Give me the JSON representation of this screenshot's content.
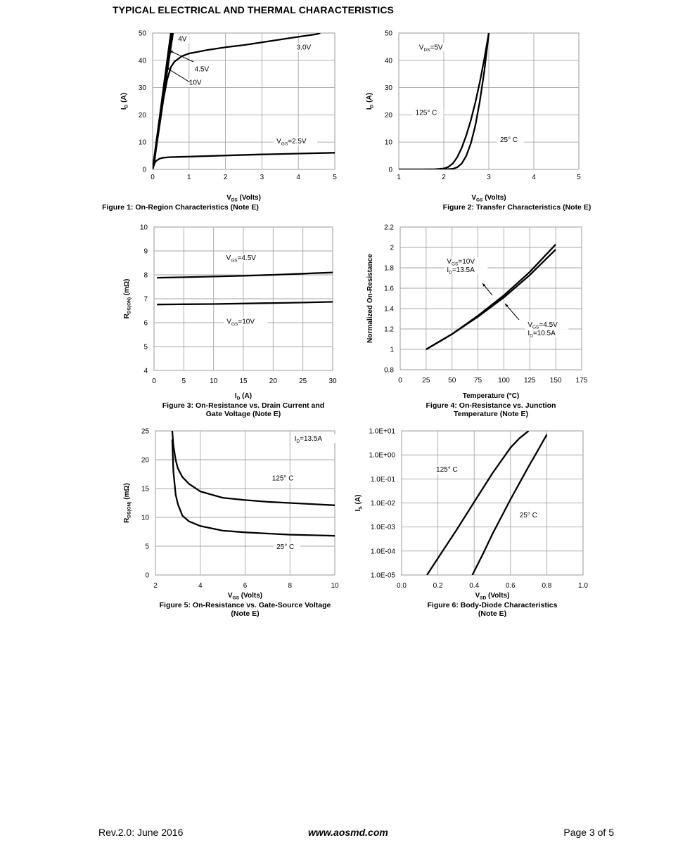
{
  "page": {
    "header": "TYPICAL ELECTRICAL AND THERMAL CHARACTERISTICS",
    "footer_left": "Rev.2.0: June 2016",
    "footer_center": "www.aosmd.com",
    "footer_right": "Page 3 of 5"
  },
  "chart_data": [
    {
      "type": "line",
      "caption": "Figure 1: On-Region Characteristics (Note E)",
      "xlabel": {
        "main": "V",
        "sub": "DS",
        "rest": " (Volts)"
      },
      "ylabel": {
        "main": "I",
        "sub": "D",
        "rest": " (A)"
      },
      "xlim": [
        0,
        5
      ],
      "ylim": [
        0,
        50
      ],
      "xticks": [
        "0",
        "1",
        "2",
        "3",
        "4",
        "5"
      ],
      "yticks": [
        "0",
        "10",
        "20",
        "30",
        "40",
        "50"
      ],
      "grid": true,
      "series": [
        {
          "name": "10V",
          "x": [
            0,
            0.05,
            0.1,
            0.2,
            0.3,
            0.4,
            0.5
          ],
          "y": [
            0,
            5,
            10,
            20,
            30,
            40,
            50
          ]
        },
        {
          "name": "4.5V",
          "x": [
            0,
            0.05,
            0.1,
            0.2,
            0.3,
            0.4,
            0.5,
            0.52
          ],
          "y": [
            0,
            4.8,
            9.6,
            19.2,
            28.8,
            38.4,
            48,
            50
          ]
        },
        {
          "name": "4V",
          "x": [
            0,
            0.05,
            0.1,
            0.2,
            0.3,
            0.4,
            0.5,
            0.56
          ],
          "y": [
            0,
            4.6,
            9.2,
            18.2,
            27.2,
            36,
            44.8,
            50
          ]
        },
        {
          "name": "3.0V",
          "x": [
            0,
            0.05,
            0.1,
            0.2,
            0.3,
            0.4,
            0.5,
            0.6,
            0.8,
            1.0,
            1.5,
            2.0,
            2.5,
            3.0,
            3.5,
            4.0,
            4.5,
            4.6
          ],
          "y": [
            0,
            3,
            8,
            17,
            26,
            33,
            37.5,
            39.5,
            41.5,
            42.5,
            43.8,
            44.8,
            45.6,
            46.6,
            47.6,
            48.6,
            49.6,
            50
          ]
        },
        {
          "name": "2.5V",
          "x": [
            0,
            0.05,
            0.1,
            0.2,
            0.3,
            0.5,
            1.0,
            2.0,
            3.0,
            4.0,
            5.0
          ],
          "y": [
            0,
            2.2,
            3.2,
            4.0,
            4.3,
            4.5,
            4.7,
            5.1,
            5.5,
            5.8,
            6.1
          ]
        }
      ],
      "annotations": [
        {
          "text": "4V",
          "x": 0.7,
          "y": 47
        },
        {
          "text": "4.5V",
          "x": 1.15,
          "y": 36
        },
        {
          "text": "10V",
          "x": 1.0,
          "y": 31
        },
        {
          "text": "3.0V",
          "x": 3.95,
          "y": 44
        },
        {
          "main": "V",
          "sub": "GS",
          "rest": "=2.5V",
          "x": 3.4,
          "y": 9.6
        }
      ]
    },
    {
      "type": "line",
      "caption": "Figure 2: Transfer Characteristics (Note E)",
      "xlabel": {
        "main": "V",
        "sub": "GS",
        "rest": " (Volts)"
      },
      "ylabel": {
        "main": "I",
        "sub": "D",
        "rest": " (A)"
      },
      "xlim": [
        1,
        5
      ],
      "ylim": [
        0,
        50
      ],
      "xticks": [
        "1",
        "2",
        "3",
        "4",
        "5"
      ],
      "yticks": [
        "0",
        "10",
        "20",
        "30",
        "40",
        "50"
      ],
      "grid": true,
      "series": [
        {
          "name": "125° C",
          "x": [
            1.0,
            1.5,
            1.8,
            2.0,
            2.1,
            2.2,
            2.3,
            2.4,
            2.5,
            2.6,
            2.7,
            2.8,
            2.9,
            3.0
          ],
          "y": [
            0,
            0,
            0.05,
            0.3,
            0.9,
            2.2,
            4.5,
            8,
            12.5,
            18,
            24.5,
            32,
            40.5,
            50
          ]
        },
        {
          "name": "25° C",
          "x": [
            1.0,
            1.5,
            2.0,
            2.2,
            2.3,
            2.4,
            2.5,
            2.6,
            2.7,
            2.8,
            2.9,
            3.0
          ],
          "y": [
            0,
            0,
            0,
            0.2,
            0.8,
            2.2,
            5,
            9.5,
            16,
            25,
            36,
            50
          ]
        }
      ],
      "annotations": [
        {
          "main": "V",
          "sub": "DS",
          "rest": "=5V",
          "x": 1.45,
          "y": 44
        },
        {
          "text": "125° C",
          "x": 1.37,
          "y": 20
        },
        {
          "text": "25° C",
          "x": 3.25,
          "y": 10
        }
      ]
    },
    {
      "type": "line",
      "caption": [
        "Figure 3: On-Resistance vs. Drain Current and",
        "Gate Voltage (Note E)"
      ],
      "xlabel": {
        "main": "I",
        "sub": "D",
        "rest": " (A)"
      },
      "ylabel": {
        "main": "R",
        "sub": "DS(ON)",
        "rest": " (mΩ)"
      },
      "xlim": [
        0,
        30
      ],
      "ylim": [
        4,
        10
      ],
      "xticks": [
        "0",
        "5",
        "10",
        "15",
        "20",
        "25",
        "30"
      ],
      "yticks": [
        "4",
        "5",
        "6",
        "7",
        "8",
        "9",
        "10"
      ],
      "grid": true,
      "series": [
        {
          "name": "VGS=4.5V",
          "x": [
            0.5,
            5,
            10,
            15,
            20,
            25,
            30
          ],
          "y": [
            7.88,
            7.9,
            7.93,
            7.96,
            8.0,
            8.05,
            8.1
          ]
        },
        {
          "name": "VGS=10V",
          "x": [
            0.5,
            5,
            10,
            15,
            20,
            25,
            30
          ],
          "y": [
            6.76,
            6.77,
            6.78,
            6.8,
            6.82,
            6.84,
            6.87
          ]
        }
      ],
      "annotations": [
        {
          "main": "V",
          "sub": "GS",
          "rest": "=4.5V",
          "x": 12.1,
          "y": 8.62
        },
        {
          "main": "V",
          "sub": "GS",
          "rest": "=10V",
          "x": 12.2,
          "y": 5.96
        }
      ]
    },
    {
      "type": "line",
      "caption": [
        "Figure 4: On-Resistance vs. Junction",
        "Temperature (Note E)"
      ],
      "xlabel": {
        "text": "Temperature (°C)"
      },
      "ylabel": {
        "text": "Normalized On-Resistance"
      },
      "xlim": [
        0,
        175
      ],
      "ylim": [
        0.8,
        2.2
      ],
      "xticks": [
        "0",
        "25",
        "50",
        "75",
        "100",
        "125",
        "150",
        "175"
      ],
      "yticks": [
        "0.8",
        "1",
        "1.2",
        "1.4",
        "1.6",
        "1.8",
        "2",
        "2.2"
      ],
      "grid": true,
      "series": [
        {
          "name": "VGS=10V, ID=13.5A",
          "x": [
            25,
            50,
            75,
            100,
            125,
            150
          ],
          "y": [
            1.0,
            1.15,
            1.33,
            1.53,
            1.76,
            2.03
          ]
        },
        {
          "name": "VGS=4.5V, ID=10.5A",
          "x": [
            25,
            50,
            75,
            100,
            125,
            150
          ],
          "y": [
            1.0,
            1.15,
            1.32,
            1.51,
            1.73,
            1.98
          ]
        }
      ],
      "annotations": [
        {
          "lines": [
            {
              "main": "V",
              "sub": "GS",
              "rest": "=10V"
            },
            {
              "main": "I",
              "sub": "D",
              "rest": "=13.5A"
            }
          ],
          "x": 45,
          "y": 1.84
        },
        {
          "lines": [
            {
              "main": "V",
              "sub": "GS",
              "rest": "=4.5V"
            },
            {
              "main": "I",
              "sub": "D",
              "rest": "=10.5A"
            }
          ],
          "x": 123,
          "y": 1.22
        }
      ]
    },
    {
      "type": "line",
      "caption": [
        "Figure 5: On-Resistance vs. Gate-Source Voltage",
        "(Note E)"
      ],
      "xlabel": {
        "main": "V",
        "sub": "GS",
        "rest": " (Volts)"
      },
      "ylabel": {
        "main": "R",
        "sub": "DS(ON)",
        "rest": " (mΩ)"
      },
      "xlim": [
        2,
        10
      ],
      "ylim": [
        0,
        25
      ],
      "xticks": [
        "2",
        "4",
        "6",
        "8",
        "10"
      ],
      "yticks": [
        "0",
        "5",
        "10",
        "15",
        "20",
        "25"
      ],
      "grid": true,
      "series": [
        {
          "name": "125° C",
          "x": [
            2.75,
            2.8,
            2.9,
            3.0,
            3.2,
            3.5,
            4.0,
            5.0,
            6.0,
            7.0,
            8.0,
            9.0,
            10.0
          ],
          "y": [
            25,
            22.5,
            20,
            18.5,
            17,
            15.8,
            14.5,
            13.4,
            13.0,
            12.7,
            12.5,
            12.3,
            12.1
          ]
        },
        {
          "name": "25° C",
          "x": [
            2.75,
            2.8,
            2.9,
            3.0,
            3.2,
            3.5,
            4.0,
            5.0,
            6.0,
            7.0,
            8.0,
            9.0,
            10.0
          ],
          "y": [
            23.5,
            18,
            14,
            12.3,
            10.3,
            9.3,
            8.5,
            7.7,
            7.4,
            7.2,
            7.0,
            6.9,
            6.8
          ]
        }
      ],
      "annotations": [
        {
          "main": "I",
          "sub": "D",
          "rest": "=13.5A",
          "x": 8.2,
          "y": 23.3
        },
        {
          "text": "125° C",
          "x": 7.2,
          "y": 16.4
        },
        {
          "text": "25° C",
          "x": 7.4,
          "y": 4.5
        }
      ]
    },
    {
      "type": "line",
      "caption": [
        "Figure 6: Body-Diode Characteristics",
        "(Note E)"
      ],
      "xlabel": {
        "main": "V",
        "sub": "SD",
        "rest": " (Volts)"
      },
      "ylabel": {
        "main": "I",
        "sub": "S",
        "rest": " (A)"
      },
      "xlim": [
        0,
        1.0
      ],
      "ylim": [
        1e-05,
        10
      ],
      "yscale": "log",
      "xticks": [
        "0.0",
        "0.2",
        "0.4",
        "0.6",
        "0.8",
        "1.0"
      ],
      "yticks": [
        "1.0E-05",
        "1.0E-04",
        "1.0E-03",
        "1.0E-02",
        "1.0E-01",
        "1.0E+00",
        "1.0E+01"
      ],
      "grid": true,
      "series": [
        {
          "name": "125° C",
          "x": [
            0.14,
            0.2,
            0.3,
            0.4,
            0.5,
            0.6,
            0.65,
            0.7
          ],
          "y": [
            1e-05,
            5e-05,
            0.0007,
            0.011,
            0.17,
            2.0,
            5.0,
            10.0
          ]
        },
        {
          "name": "25° C",
          "x": [
            0.39,
            0.45,
            0.5,
            0.6,
            0.7,
            0.75,
            0.8
          ],
          "y": [
            1e-05,
            8e-05,
            0.0005,
            0.014,
            0.33,
            1.5,
            7.0
          ]
        }
      ],
      "annotations": [
        {
          "text": "125° C",
          "x": 0.19,
          "y": 0.2
        },
        {
          "text": "25° C",
          "x": 0.65,
          "y": 0.0025
        }
      ]
    }
  ]
}
